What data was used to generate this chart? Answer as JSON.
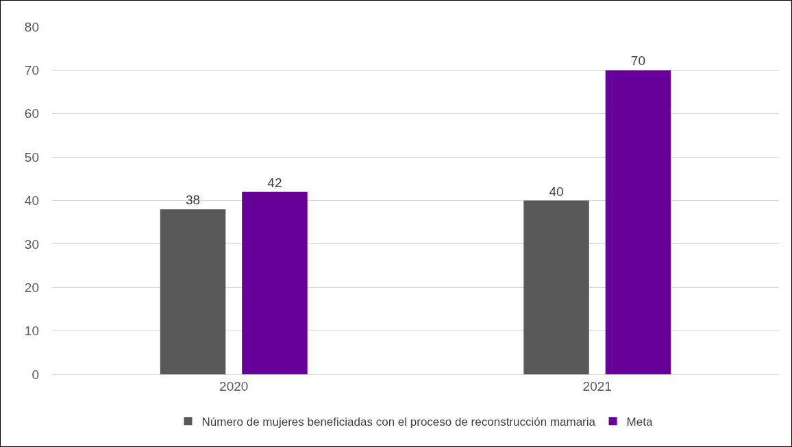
{
  "chart_data": {
    "type": "bar",
    "categories": [
      "2020",
      "2021"
    ],
    "series": [
      {
        "name": "Número de mujeres beneficiadas con el proceso de reconstrucción mamaria",
        "color": "#595959",
        "values": [
          38,
          40
        ]
      },
      {
        "name": "Meta",
        "color": "#660099",
        "values": [
          42,
          70
        ]
      }
    ],
    "ylim": [
      0,
      80
    ],
    "yticks": [
      0,
      10,
      20,
      30,
      40,
      50,
      60,
      70,
      80
    ],
    "grid": "y",
    "legend": "bottom",
    "data_labels": true
  }
}
